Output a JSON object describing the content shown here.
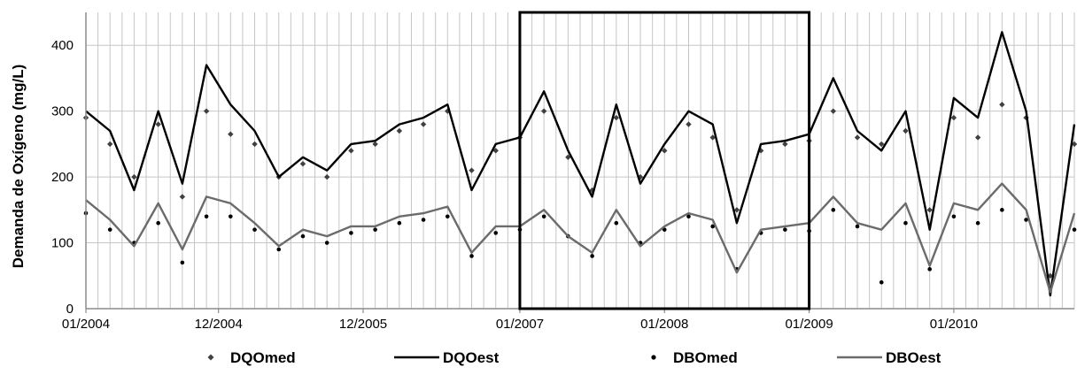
{
  "chart_data": {
    "type": "line",
    "title": "",
    "xlabel": "",
    "ylabel": "Demanda de Oxígeno (mg/L)",
    "ylim": [
      0,
      450
    ],
    "yticks": [
      0,
      100,
      200,
      300,
      400
    ],
    "x_range": [
      "2004-01",
      "2010-11"
    ],
    "xticks": [
      {
        "date": "2004-01",
        "label": "01/2004"
      },
      {
        "date": "2004-12",
        "label": "12/2004"
      },
      {
        "date": "2005-12",
        "label": "12/2005"
      },
      {
        "date": "2007-01",
        "label": "01/2007"
      },
      {
        "date": "2008-01",
        "label": "01/2008"
      },
      {
        "date": "2009-01",
        "label": "01/2009"
      },
      {
        "date": "2010-01",
        "label": "01/2010"
      }
    ],
    "highlight_box": {
      "from": "2007-01",
      "to": "2009-01"
    },
    "grid": {
      "vertical": true,
      "horizontal": true
    },
    "legend_position": "bottom",
    "series": [
      {
        "name": "DQOmed",
        "style": "diamond-markers",
        "color": "#404040",
        "x": [
          "2004-01",
          "2004-03",
          "2004-05",
          "2004-07",
          "2004-09",
          "2004-11",
          "2005-01",
          "2005-03",
          "2005-05",
          "2005-07",
          "2005-09",
          "2005-11",
          "2006-01",
          "2006-03",
          "2006-05",
          "2006-07",
          "2006-09",
          "2006-11",
          "2007-01",
          "2007-03",
          "2007-05",
          "2007-07",
          "2007-09",
          "2007-11",
          "2008-01",
          "2008-03",
          "2008-05",
          "2008-07",
          "2008-09",
          "2008-11",
          "2009-01",
          "2009-03",
          "2009-05",
          "2009-07",
          "2009-09",
          "2009-11",
          "2010-01",
          "2010-03",
          "2010-05",
          "2010-07",
          "2010-09",
          "2010-11"
        ],
        "y": [
          290,
          250,
          200,
          280,
          170,
          300,
          265,
          250,
          200,
          220,
          200,
          240,
          250,
          270,
          280,
          300,
          210,
          240,
          260,
          300,
          230,
          180,
          290,
          200,
          240,
          280,
          260,
          150,
          240,
          250,
          255,
          300,
          260,
          250,
          270,
          150,
          290,
          260,
          310,
          290,
          50,
          250
        ]
      },
      {
        "name": "DQOest",
        "style": "line",
        "color": "#000000",
        "x": [
          "2004-01",
          "2004-03",
          "2004-05",
          "2004-07",
          "2004-09",
          "2004-11",
          "2005-01",
          "2005-03",
          "2005-05",
          "2005-07",
          "2005-09",
          "2005-11",
          "2006-01",
          "2006-03",
          "2006-05",
          "2006-07",
          "2006-09",
          "2006-11",
          "2007-01",
          "2007-03",
          "2007-05",
          "2007-07",
          "2007-09",
          "2007-11",
          "2008-01",
          "2008-03",
          "2008-05",
          "2008-07",
          "2008-09",
          "2008-11",
          "2009-01",
          "2009-03",
          "2009-05",
          "2009-07",
          "2009-09",
          "2009-11",
          "2010-01",
          "2010-03",
          "2010-05",
          "2010-07",
          "2010-09",
          "2010-11"
        ],
        "y": [
          300,
          270,
          180,
          300,
          190,
          370,
          310,
          270,
          200,
          230,
          210,
          250,
          255,
          280,
          290,
          310,
          180,
          250,
          260,
          330,
          240,
          170,
          310,
          190,
          250,
          300,
          280,
          130,
          250,
          255,
          265,
          350,
          270,
          240,
          300,
          120,
          320,
          290,
          420,
          300,
          20,
          280
        ]
      },
      {
        "name": "DBOmed",
        "style": "dot-markers",
        "color": "#000000",
        "x": [
          "2004-01",
          "2004-03",
          "2004-05",
          "2004-07",
          "2004-09",
          "2004-11",
          "2005-01",
          "2005-03",
          "2005-05",
          "2005-07",
          "2005-09",
          "2005-11",
          "2006-01",
          "2006-03",
          "2006-05",
          "2006-07",
          "2006-09",
          "2006-11",
          "2007-01",
          "2007-03",
          "2007-05",
          "2007-07",
          "2007-09",
          "2007-11",
          "2008-01",
          "2008-03",
          "2008-05",
          "2008-07",
          "2008-09",
          "2008-11",
          "2009-01",
          "2009-03",
          "2009-05",
          "2009-07",
          "2009-09",
          "2009-11",
          "2010-01",
          "2010-03",
          "2010-05",
          "2010-07",
          "2010-09",
          "2010-11"
        ],
        "y": [
          145,
          120,
          100,
          130,
          70,
          140,
          140,
          120,
          90,
          110,
          100,
          115,
          120,
          130,
          135,
          140,
          80,
          115,
          120,
          140,
          110,
          80,
          130,
          100,
          120,
          140,
          125,
          60,
          115,
          120,
          118,
          150,
          125,
          40,
          130,
          60,
          140,
          130,
          150,
          135,
          30,
          120
        ]
      },
      {
        "name": "DBOest",
        "style": "line",
        "color": "#6b6b6b",
        "x": [
          "2004-01",
          "2004-03",
          "2004-05",
          "2004-07",
          "2004-09",
          "2004-11",
          "2005-01",
          "2005-03",
          "2005-05",
          "2005-07",
          "2005-09",
          "2005-11",
          "2006-01",
          "2006-03",
          "2006-05",
          "2006-07",
          "2006-09",
          "2006-11",
          "2007-01",
          "2007-03",
          "2007-05",
          "2007-07",
          "2007-09",
          "2007-11",
          "2008-01",
          "2008-03",
          "2008-05",
          "2008-07",
          "2008-09",
          "2008-11",
          "2009-01",
          "2009-03",
          "2009-05",
          "2009-07",
          "2009-09",
          "2009-11",
          "2010-01",
          "2010-03",
          "2010-05",
          "2010-07",
          "2010-09",
          "2010-11"
        ],
        "y": [
          165,
          135,
          95,
          160,
          90,
          170,
          160,
          130,
          95,
          120,
          110,
          125,
          125,
          140,
          145,
          155,
          85,
          125,
          125,
          150,
          110,
          85,
          150,
          95,
          125,
          145,
          135,
          55,
          120,
          125,
          130,
          170,
          130,
          120,
          160,
          65,
          160,
          150,
          190,
          150,
          25,
          145
        ]
      }
    ]
  }
}
